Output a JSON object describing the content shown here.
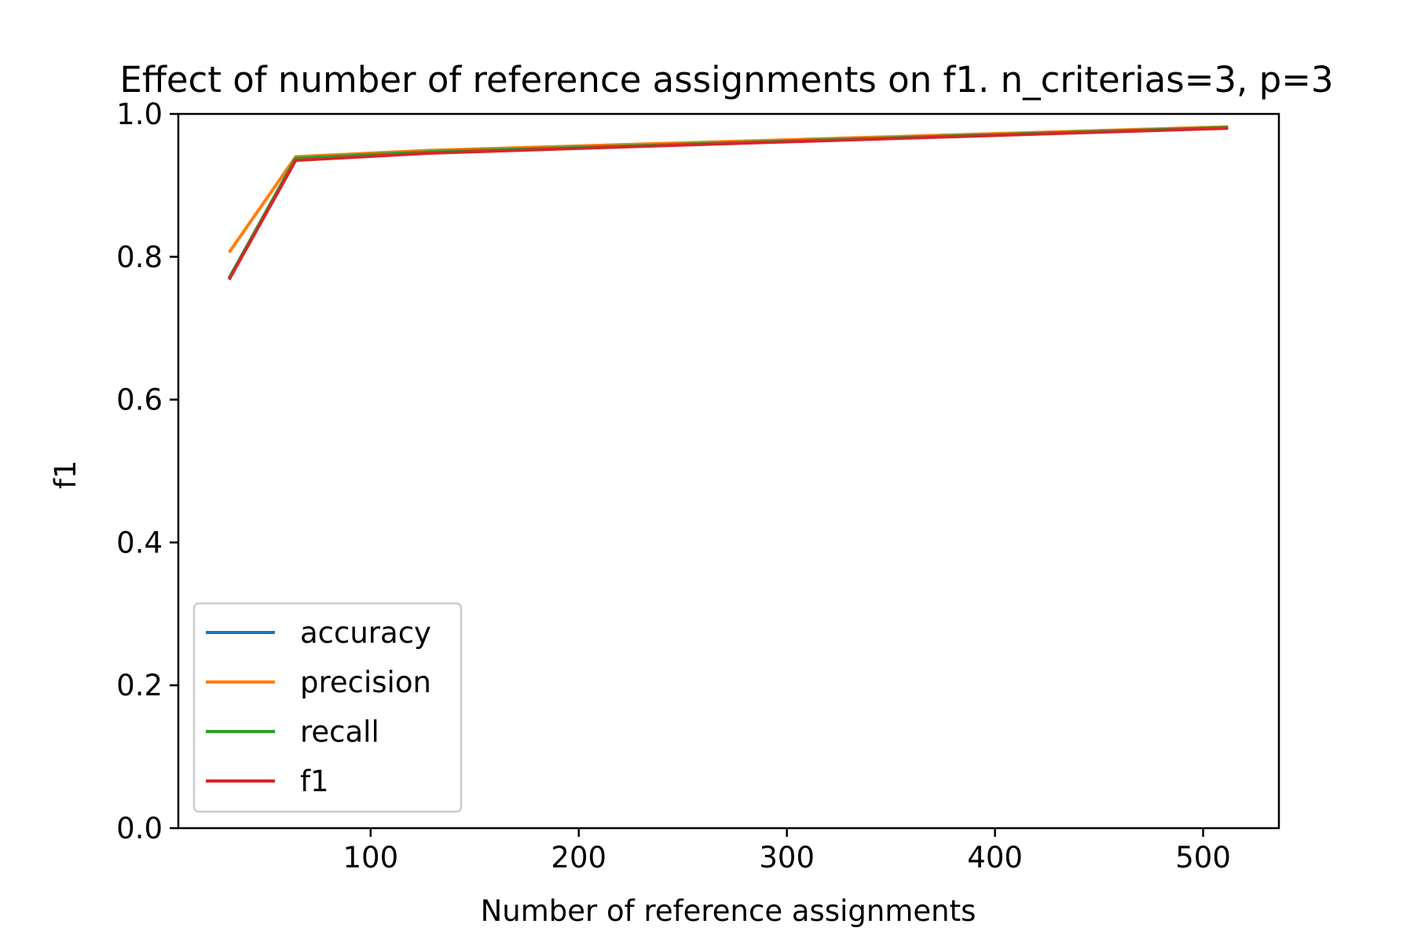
{
  "chart_data": {
    "type": "line",
    "title": "Effect of number of reference assignments on f1. n_criterias=3, p=3",
    "xlabel": "Number of reference assignments",
    "ylabel": "f1",
    "x": [
      32,
      64,
      128,
      256,
      512
    ],
    "series": [
      {
        "name": "accuracy",
        "color": "#1f77b4",
        "values": [
          0.77,
          0.938,
          0.947,
          0.958,
          0.981
        ]
      },
      {
        "name": "precision",
        "color": "#ff7f0e",
        "values": [
          0.806,
          0.94,
          0.949,
          0.96,
          0.982
        ]
      },
      {
        "name": "recall",
        "color": "#2ca02c",
        "values": [
          0.77,
          0.938,
          0.947,
          0.958,
          0.981
        ]
      },
      {
        "name": "f1",
        "color": "#d62728",
        "values": [
          0.768,
          0.935,
          0.945,
          0.957,
          0.98
        ]
      }
    ],
    "xlim": [
      7.6,
      536.4
    ],
    "ylim": [
      0.0,
      1.0
    ],
    "xticks": [
      100,
      200,
      300,
      400,
      500
    ],
    "xtick_labels": [
      "100",
      "200",
      "300",
      "400",
      "500"
    ],
    "yticks": [
      0.0,
      0.2,
      0.4,
      0.6,
      0.8,
      1.0
    ],
    "ytick_labels": [
      "0.0",
      "0.2",
      "0.4",
      "0.6",
      "0.8",
      "1.0"
    ],
    "grid": false,
    "legend_position": "lower-left"
  }
}
